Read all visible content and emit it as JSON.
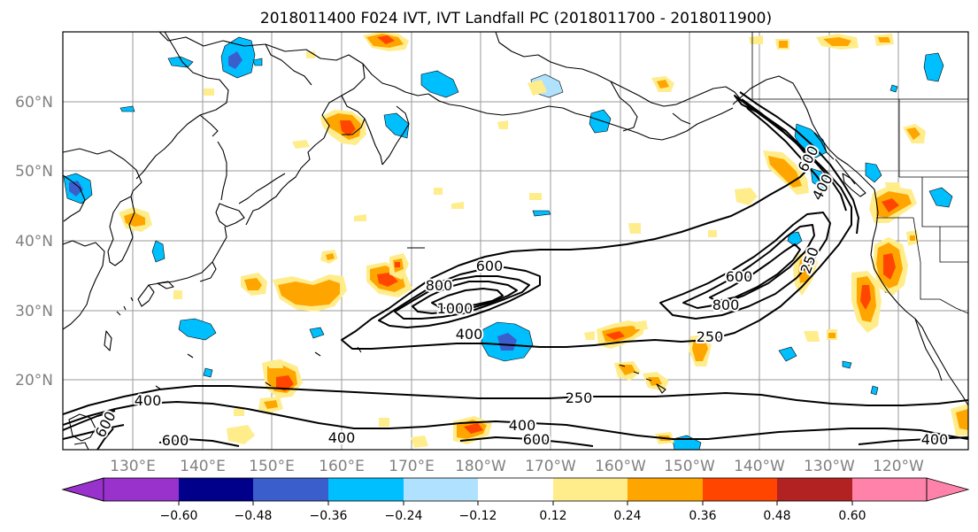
{
  "title": "2018011400 F024 IVT, IVT Landfall PC (2018011700 - 2018011900)",
  "lat_labels": [
    "60°N",
    "50°N",
    "40°N",
    "30°N",
    "20°N"
  ],
  "lon_labels": [
    "130°E",
    "140°E",
    "150°E",
    "160°E",
    "170°E",
    "180°W",
    "170°W",
    "160°W",
    "150°W",
    "140°W",
    "130°W",
    "120°W"
  ],
  "contour_labels": {
    "c600_left_cluster": "600",
    "c800_left_cluster": "800",
    "c1000_left_cluster": "1000",
    "c400_left_cluster": "400",
    "c600_right_cluster": "600",
    "c800_right_cluster": "800",
    "c250_right_cluster": "250",
    "c250_coast": "250",
    "c600_coast": "600",
    "c400_coast": "400",
    "c250_south": "250",
    "c400_south": "400",
    "c600_south": "600",
    "c400_southwest": "400",
    "c600_southwest": "600",
    "c600_southwest_lower": "600",
    "c400_south_mid": "400",
    "c400_southeast": "400"
  },
  "colorbar": {
    "colors": [
      "#9932cc",
      "#00008b",
      "#3a5fcd",
      "#00bfff",
      "#b0e2ff",
      "#ffffff",
      "#ffec8b",
      "#ffa500",
      "#ff4500",
      "#b22222",
      "#ff82ab"
    ],
    "tick_labels": [
      "−0.60",
      "−0.48",
      "−0.36",
      "−0.24",
      "−0.12",
      "0.12",
      "0.24",
      "0.36",
      "0.48",
      "0.60"
    ]
  },
  "map_data": {
    "projection": "plate carree",
    "lon_range": [
      "122°E",
      "113°W"
    ],
    "lat_range": [
      "10°N",
      "70°N"
    ],
    "contour_levels": [
      250,
      400,
      600,
      800,
      1000
    ],
    "shading_levels": [
      -0.6,
      -0.48,
      -0.36,
      -0.24,
      -0.12,
      0.12,
      0.24,
      0.36,
      0.48,
      0.6
    ]
  }
}
